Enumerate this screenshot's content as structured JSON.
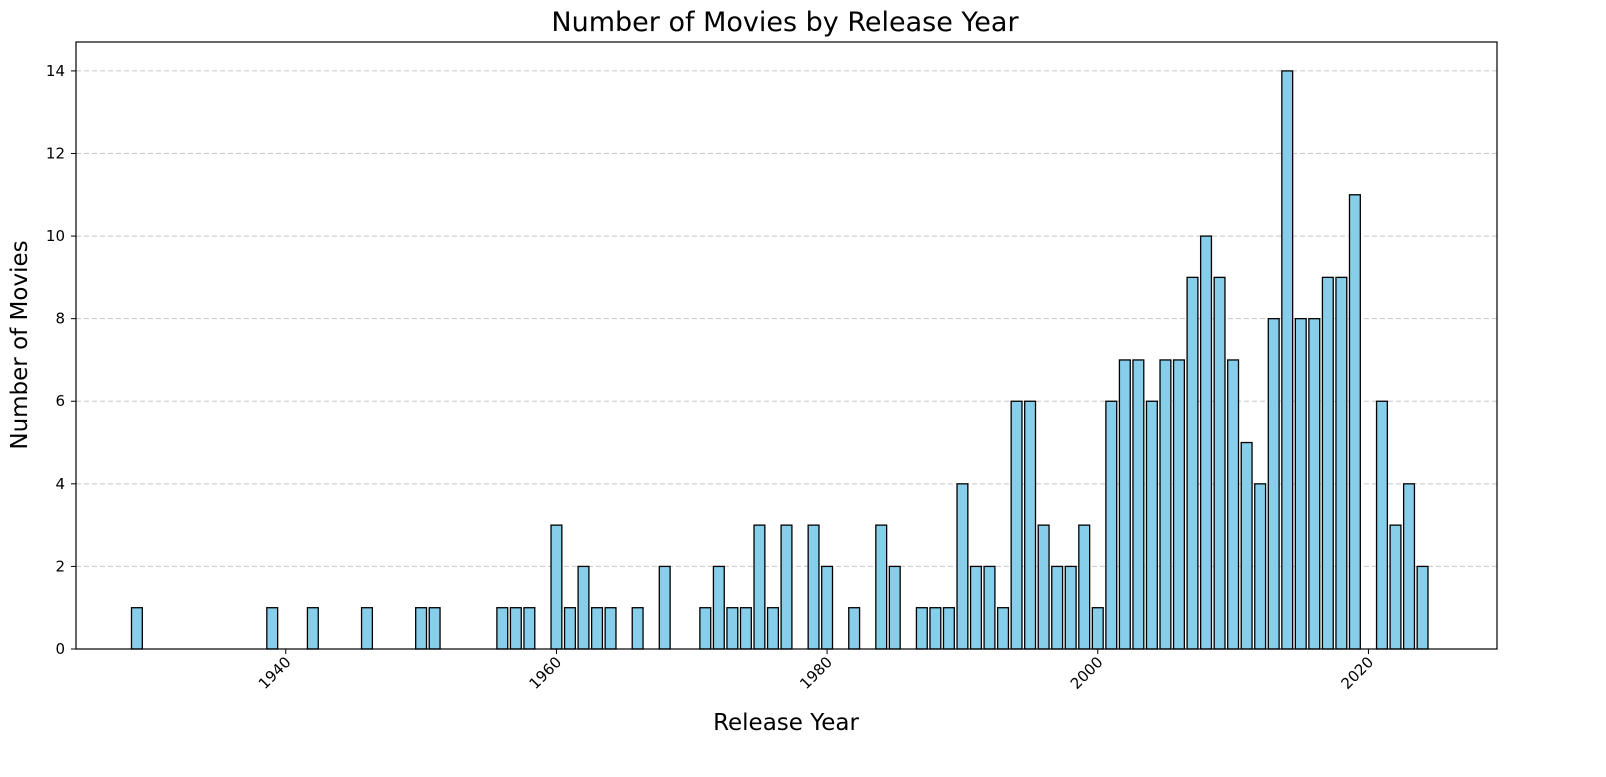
{
  "chart_data": {
    "type": "bar",
    "title": "Number of Movies by Release Year",
    "xlabel": "Release Year",
    "ylabel": "Number of Movies",
    "xlim": [
      1924.5,
      2029.5
    ],
    "ylim": [
      0,
      14.7
    ],
    "xticks": [
      1940,
      1960,
      1980,
      2000,
      2020
    ],
    "yticks": [
      0,
      2,
      4,
      6,
      8,
      10,
      12,
      14
    ],
    "grid": "y-dashed",
    "bar_color": "#87CEEB",
    "edge_color": "#000000",
    "x": [
      1929,
      1939,
      1942,
      1946,
      1950,
      1951,
      1956,
      1957,
      1958,
      1960,
      1961,
      1962,
      1963,
      1964,
      1966,
      1968,
      1971,
      1972,
      1973,
      1974,
      1975,
      1976,
      1977,
      1979,
      1980,
      1982,
      1984,
      1985,
      1987,
      1988,
      1989,
      1990,
      1991,
      1992,
      1993,
      1994,
      1995,
      1996,
      1997,
      1998,
      1999,
      2000,
      2001,
      2002,
      2003,
      2004,
      2005,
      2006,
      2007,
      2008,
      2009,
      2010,
      2011,
      2012,
      2013,
      2014,
      2015,
      2016,
      2017,
      2018,
      2019,
      2021,
      2022,
      2023,
      2024
    ],
    "values": [
      1,
      1,
      1,
      1,
      1,
      1,
      1,
      1,
      1,
      3,
      1,
      2,
      1,
      1,
      1,
      2,
      1,
      2,
      1,
      1,
      3,
      1,
      3,
      3,
      2,
      1,
      3,
      2,
      1,
      1,
      1,
      4,
      2,
      2,
      1,
      6,
      6,
      3,
      2,
      2,
      3,
      1,
      6,
      7,
      7,
      6,
      7,
      7,
      9,
      10,
      9,
      7,
      5,
      4,
      8,
      14,
      8,
      8,
      9,
      9,
      11,
      6,
      3,
      4,
      2
    ]
  }
}
